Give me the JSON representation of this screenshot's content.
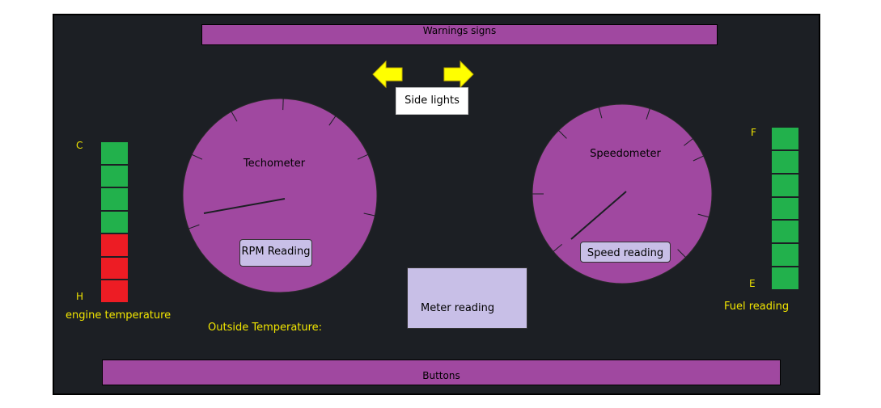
{
  "warnings_bar": {
    "label": "Warnings signs"
  },
  "side_lights": {
    "label": "Side lights"
  },
  "tachometer": {
    "label": "Techometer",
    "reading_label": "RPM Reading"
  },
  "speedometer": {
    "label": "Speedometer",
    "reading_label": "Speed reading"
  },
  "engine_temperature": {
    "label": "engine temperature",
    "top_label": "C",
    "bottom_label": "H",
    "segments": [
      "green",
      "green",
      "green",
      "green",
      "red",
      "red",
      "red"
    ]
  },
  "fuel": {
    "label": "Fuel reading",
    "top_label": "F",
    "bottom_label": "E",
    "segments": [
      "green",
      "green",
      "green",
      "green",
      "green",
      "green",
      "green"
    ]
  },
  "outside_temperature": {
    "label": "Outside Temperature:"
  },
  "meter": {
    "label": "Meter reading"
  },
  "buttons_bar": {
    "label": "Buttons"
  },
  "colors": {
    "panel": "#1c1f24",
    "gauge": "#a048a0",
    "reading": "#c8bfe7",
    "arrow": "#ffff00",
    "text_yellow": "#f2e600"
  }
}
